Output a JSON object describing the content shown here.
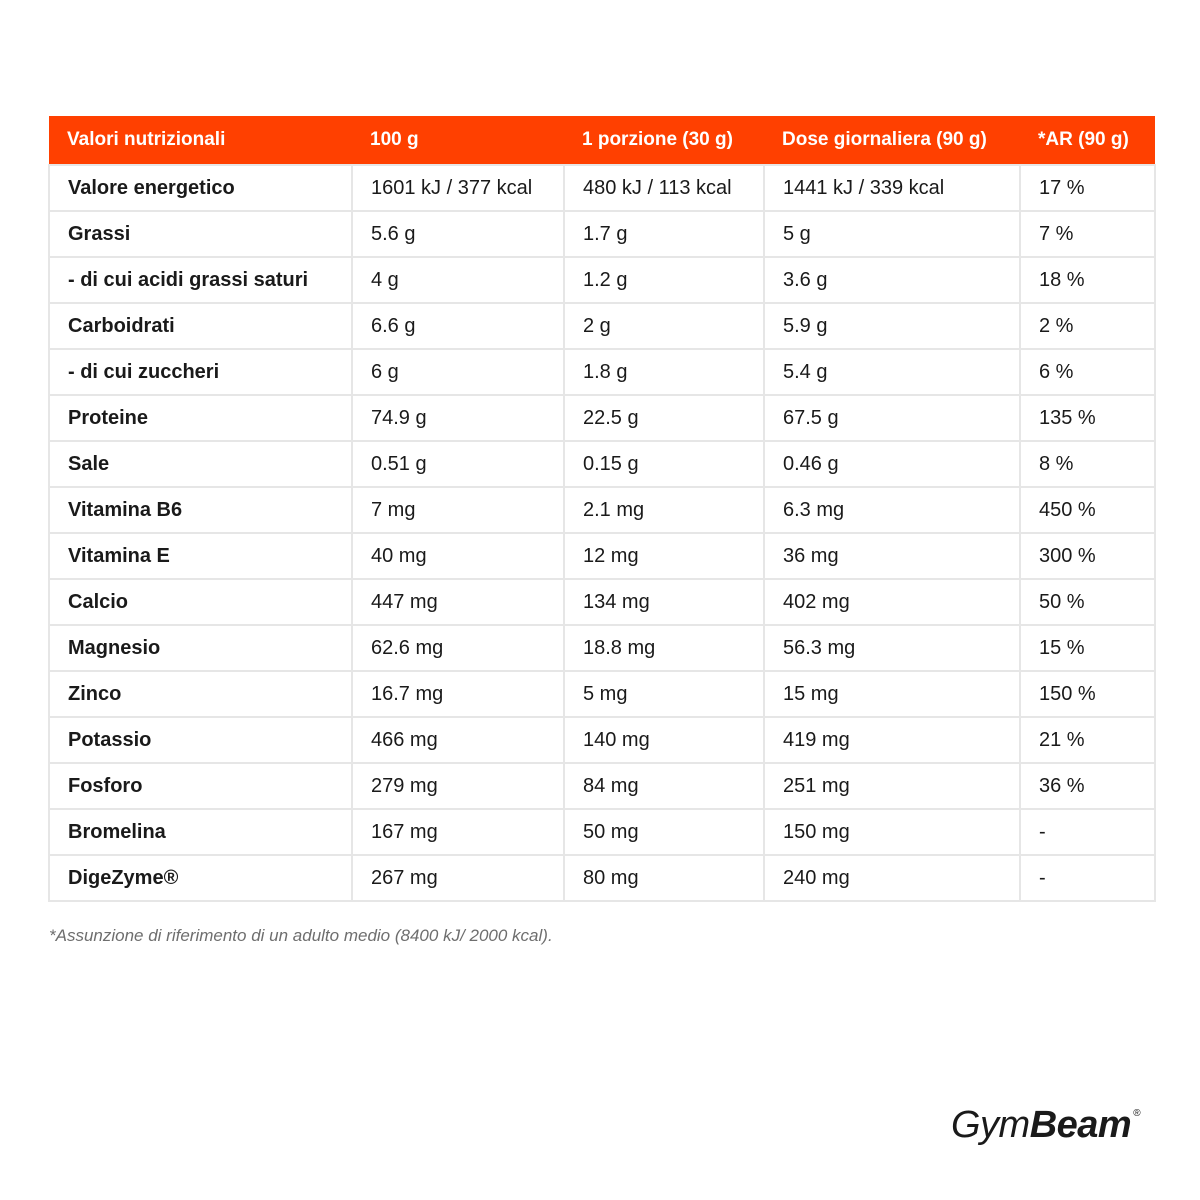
{
  "table": {
    "headers": [
      "Valori nutrizionali",
      "100 g",
      "1 porzione (30 g)",
      "Dose giornaliera (90 g)",
      "*AR (90 g)"
    ],
    "rows": [
      [
        "Valore energetico",
        "1601 kJ / 377 kcal",
        "480 kJ / 113 kcal",
        "1441 kJ / 339 kcal",
        "17 %"
      ],
      [
        "Grassi",
        "5.6 g",
        "1.7 g",
        "5 g",
        "7 %"
      ],
      [
        "- di cui acidi grassi saturi",
        "4 g",
        "1.2 g",
        "3.6 g",
        "18 %"
      ],
      [
        "Carboidrati",
        "6.6 g",
        "2 g",
        "5.9 g",
        "2 %"
      ],
      [
        "- di cui zuccheri",
        "6 g",
        "1.8 g",
        "5.4 g",
        "6 %"
      ],
      [
        "Proteine",
        "74.9 g",
        "22.5 g",
        "67.5 g",
        "135 %"
      ],
      [
        "Sale",
        "0.51 g",
        "0.15 g",
        "0.46 g",
        "8 %"
      ],
      [
        "Vitamina B6",
        "7 mg",
        "2.1 mg",
        "6.3 mg",
        "450 %"
      ],
      [
        "Vitamina E",
        "40 mg",
        "12 mg",
        "36 mg",
        "300 %"
      ],
      [
        "Calcio",
        "447 mg",
        "134 mg",
        "402 mg",
        "50 %"
      ],
      [
        "Magnesio",
        "62.6 mg",
        "18.8 mg",
        "56.3 mg",
        "15 %"
      ],
      [
        "Zinco",
        "16.7 mg",
        "5 mg",
        "15 mg",
        "150 %"
      ],
      [
        "Potassio",
        "466 mg",
        "140 mg",
        "419 mg",
        "21 %"
      ],
      [
        "Fosforo",
        "279 mg",
        "84 mg",
        "251 mg",
        "36 %"
      ],
      [
        "Bromelina",
        "167 mg",
        "50 mg",
        "150 mg",
        "-"
      ],
      [
        "DigeZyme®",
        "267 mg",
        "80 mg",
        "240 mg",
        "-"
      ]
    ]
  },
  "footnote": "*Assunzione di riferimento di un adulto medio (8400 kJ/ 2000 kcal).",
  "logo": {
    "part1": "Gym",
    "part2": "Beam",
    "mark": "®"
  },
  "colors": {
    "header_bg": "#ff4000",
    "header_text": "#ffffff",
    "border": "#e6e6e6"
  }
}
